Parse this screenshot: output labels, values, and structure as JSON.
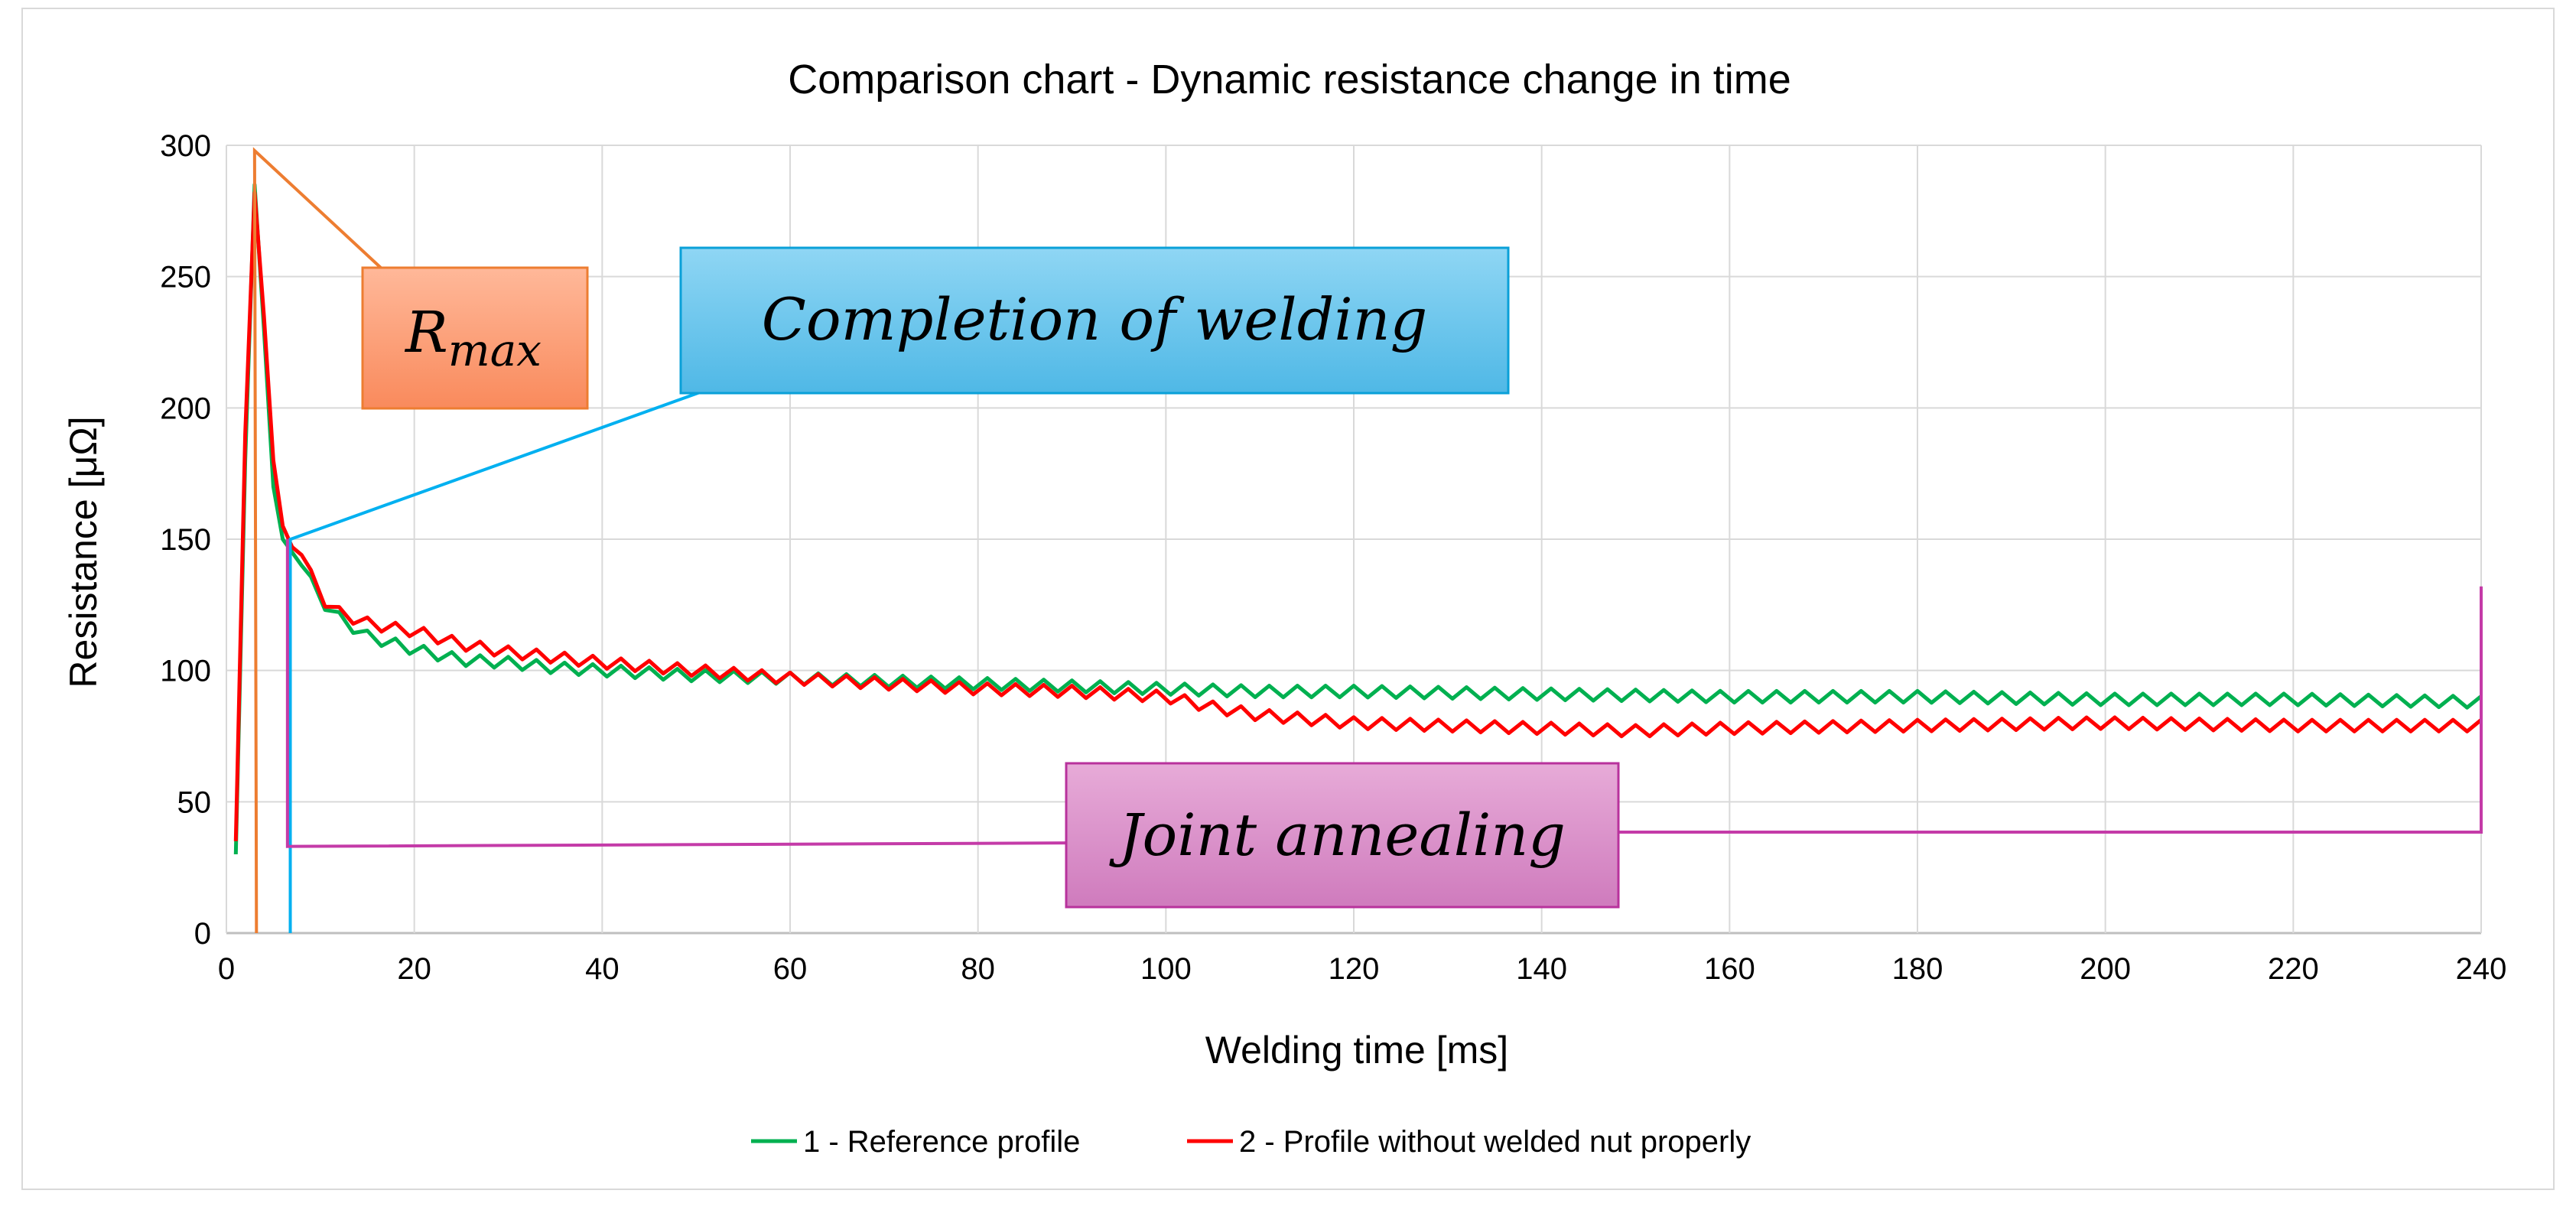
{
  "chart_data": {
    "type": "line",
    "title": "Comparison chart - Dynamic resistance change in time",
    "xlabel": "Welding time [ms]",
    "ylabel": "Resistance [μΩ]",
    "xlim": [
      0,
      240
    ],
    "ylim": [
      0,
      300
    ],
    "x_ticks": [
      "0",
      "20",
      "40",
      "60",
      "80",
      "100",
      "120",
      "140",
      "160",
      "180",
      "200",
      "220",
      "240"
    ],
    "y_ticks": [
      "0",
      "50",
      "100",
      "150",
      "200",
      "250",
      "300"
    ],
    "grid": true,
    "legend_position": "bottom",
    "series": [
      {
        "name": "1 - Reference profile",
        "color": "#00b050",
        "x": [
          1,
          2,
          3,
          4,
          5,
          6,
          7,
          8,
          10,
          12,
          15,
          18,
          20,
          25,
          30,
          35,
          40,
          50,
          60,
          70,
          80,
          90,
          100,
          110,
          120,
          140,
          160,
          180,
          200,
          220,
          240
        ],
        "values": [
          30,
          180,
          285,
          230,
          170,
          150,
          145,
          140,
          127,
          120,
          113,
          110,
          108,
          104,
          103,
          101,
          100,
          98,
          97,
          96,
          95,
          94,
          93,
          92,
          92,
          91,
          90,
          90,
          89,
          89,
          88
        ]
      },
      {
        "name": "2 - Profile without welded nut properly",
        "color": "#ff0000",
        "x": [
          1,
          2,
          3,
          4,
          5,
          6,
          7,
          8,
          10,
          12,
          15,
          18,
          20,
          25,
          30,
          35,
          40,
          50,
          60,
          70,
          80,
          90,
          100,
          105,
          110,
          120,
          130,
          140,
          150,
          160,
          180,
          200,
          220,
          240
        ],
        "values": [
          35,
          190,
          282,
          235,
          180,
          155,
          147,
          144,
          128,
          122,
          118,
          116,
          115,
          110,
          107,
          105,
          103,
          100,
          97,
          95,
          93,
          92,
          90,
          86,
          83,
          80,
          79,
          78,
          77,
          78,
          79,
          80,
          79,
          79
        ]
      }
    ],
    "annotations": [
      {
        "name": "r-max",
        "text": "R",
        "subscript": "max",
        "color": "#ff8c5a",
        "border": "#ed7d31",
        "line_color": "#ed7d31",
        "points_to": [
          3,
          298
        ]
      },
      {
        "name": "completion-of-welding",
        "text": "Completion of welding",
        "color": "#6fc8ec",
        "border": "#00b0f0",
        "line_color": "#00b0f0",
        "points_to": [
          6.5,
          150
        ]
      },
      {
        "name": "joint-annealing",
        "text": "Joint annealing",
        "color": "#d989c4",
        "border": "#c43ba8",
        "line_color": "#c43ba8",
        "points_to": [
          6.5,
          33
        ]
      }
    ]
  }
}
